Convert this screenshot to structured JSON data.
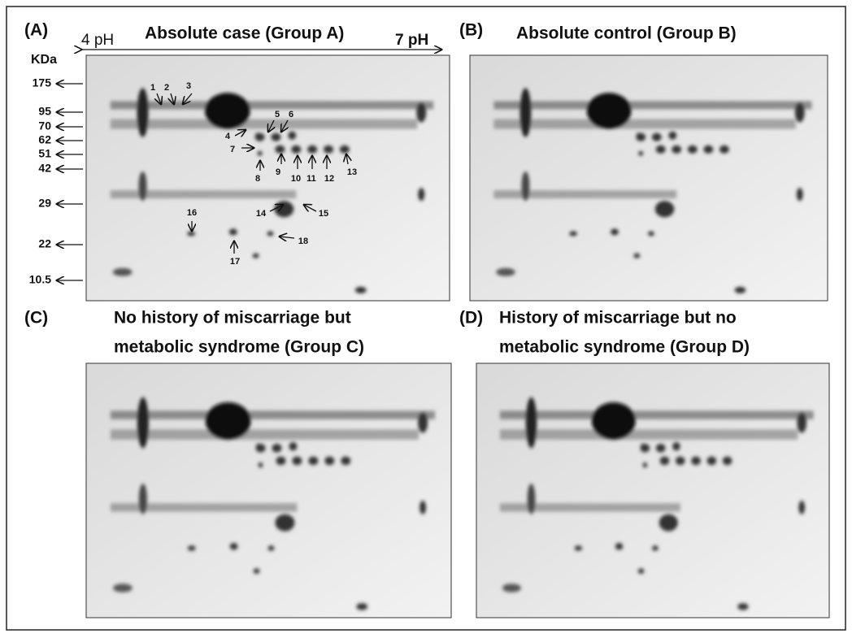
{
  "panels": [
    {
      "label": "(A)",
      "title": [
        "Absolute case (Group A)"
      ],
      "ph_start": "4 pH",
      "ph_end": "7 pH",
      "mw_unit": "KDa",
      "mw_markers": [
        "175",
        "95",
        "70",
        "62",
        "51",
        "42",
        "29",
        "22",
        "10.5"
      ],
      "spots": [
        "1",
        "2",
        "3",
        "4",
        "5",
        "6",
        "7",
        "8",
        "9",
        "10",
        "11",
        "12",
        "13",
        "14",
        "15",
        "16",
        "17",
        "18"
      ]
    },
    {
      "label": "(B)",
      "title": [
        "Absolute control (Group B)"
      ]
    },
    {
      "label": "(C)",
      "title": [
        "No history of miscarriage but",
        "metabolic syndrome (Group C)"
      ]
    },
    {
      "label": "(D)",
      "title": [
        "History of miscarriage but no",
        "metabolic syndrome (Group D)"
      ]
    }
  ]
}
